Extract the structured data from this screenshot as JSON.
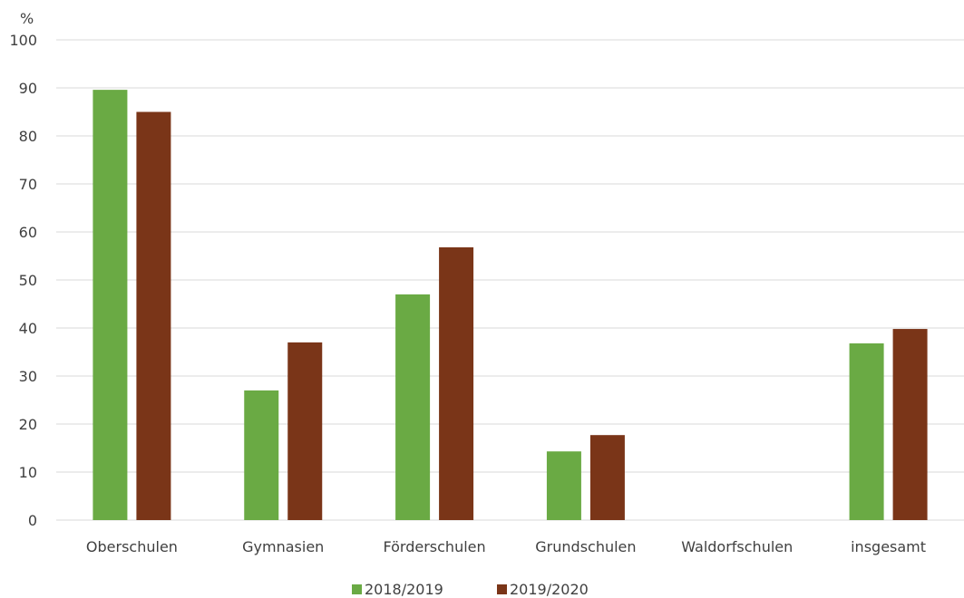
{
  "chart_data": {
    "type": "bar",
    "unit": "%",
    "ylim": [
      0,
      100
    ],
    "yticks": [
      0,
      10,
      20,
      30,
      40,
      50,
      60,
      70,
      80,
      90,
      100
    ],
    "grid": true,
    "legend_position": "bottom",
    "categories": [
      "Oberschulen",
      "Gymnasien",
      "Förderschulen",
      "Grundschulen",
      "Waldorfschulen",
      "insgesamt"
    ],
    "series": [
      {
        "name": "2018/2019",
        "color": "#6aaa44",
        "values": [
          89.6,
          27.0,
          47.0,
          14.3,
          null,
          36.8
        ]
      },
      {
        "name": "2019/2020",
        "color": "#7a3518",
        "values": [
          85.0,
          37.0,
          56.8,
          17.7,
          null,
          39.8
        ]
      }
    ]
  }
}
